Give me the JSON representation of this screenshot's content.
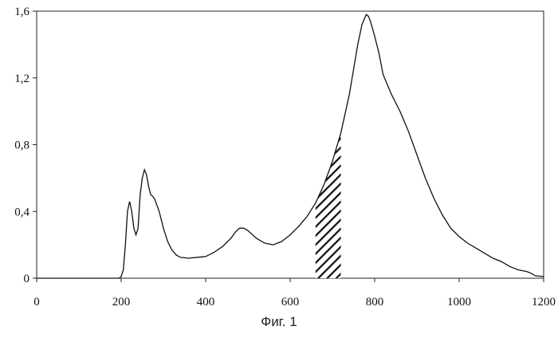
{
  "chart_data": {
    "type": "line",
    "title": "",
    "xlabel": "",
    "ylabel": "",
    "xlim": [
      0,
      1200
    ],
    "ylim": [
      0,
      1.6
    ],
    "x_ticks": [
      "0",
      "200",
      "400",
      "600",
      "800",
      "1000",
      "1200"
    ],
    "y_ticks": [
      "0",
      "0,4",
      "0,8",
      "1,2",
      "1,6"
    ],
    "grid": false,
    "legend": "none",
    "line_color": "#111111",
    "series": [
      {
        "points": [
          [
            0,
            0
          ],
          [
            195,
            0
          ],
          [
            200,
            0.01
          ],
          [
            205,
            0.05
          ],
          [
            210,
            0.2
          ],
          [
            215,
            0.4
          ],
          [
            220,
            0.46
          ],
          [
            225,
            0.4
          ],
          [
            230,
            0.3
          ],
          [
            235,
            0.26
          ],
          [
            240,
            0.3
          ],
          [
            245,
            0.5
          ],
          [
            250,
            0.6
          ],
          [
            255,
            0.65
          ],
          [
            260,
            0.62
          ],
          [
            265,
            0.55
          ],
          [
            270,
            0.5
          ],
          [
            275,
            0.49
          ],
          [
            280,
            0.47
          ],
          [
            290,
            0.4
          ],
          [
            300,
            0.3
          ],
          [
            310,
            0.22
          ],
          [
            320,
            0.17
          ],
          [
            330,
            0.14
          ],
          [
            340,
            0.125
          ],
          [
            360,
            0.12
          ],
          [
            380,
            0.125
          ],
          [
            400,
            0.13
          ],
          [
            420,
            0.155
          ],
          [
            440,
            0.19
          ],
          [
            460,
            0.24
          ],
          [
            470,
            0.275
          ],
          [
            480,
            0.3
          ],
          [
            490,
            0.3
          ],
          [
            500,
            0.285
          ],
          [
            520,
            0.24
          ],
          [
            540,
            0.21
          ],
          [
            560,
            0.2
          ],
          [
            580,
            0.22
          ],
          [
            600,
            0.26
          ],
          [
            620,
            0.31
          ],
          [
            640,
            0.37
          ],
          [
            660,
            0.45
          ],
          [
            680,
            0.56
          ],
          [
            700,
            0.7
          ],
          [
            720,
            0.87
          ],
          [
            740,
            1.1
          ],
          [
            750,
            1.25
          ],
          [
            760,
            1.4
          ],
          [
            770,
            1.52
          ],
          [
            780,
            1.58
          ],
          [
            785,
            1.57
          ],
          [
            790,
            1.54
          ],
          [
            800,
            1.45
          ],
          [
            810,
            1.35
          ],
          [
            820,
            1.22
          ],
          [
            830,
            1.16
          ],
          [
            840,
            1.1
          ],
          [
            860,
            1.0
          ],
          [
            880,
            0.88
          ],
          [
            900,
            0.74
          ],
          [
            920,
            0.6
          ],
          [
            940,
            0.48
          ],
          [
            960,
            0.38
          ],
          [
            980,
            0.3
          ],
          [
            1000,
            0.25
          ],
          [
            1020,
            0.21
          ],
          [
            1040,
            0.18
          ],
          [
            1060,
            0.15
          ],
          [
            1080,
            0.12
          ],
          [
            1100,
            0.1
          ],
          [
            1120,
            0.07
          ],
          [
            1140,
            0.05
          ],
          [
            1160,
            0.04
          ],
          [
            1170,
            0.03
          ],
          [
            1180,
            0.015
          ],
          [
            1200,
            0.01
          ]
        ]
      }
    ],
    "shaded_band": {
      "x_range": [
        660,
        720
      ],
      "pattern": "diagonal-hatch"
    },
    "caption": "Фиг. 1"
  }
}
